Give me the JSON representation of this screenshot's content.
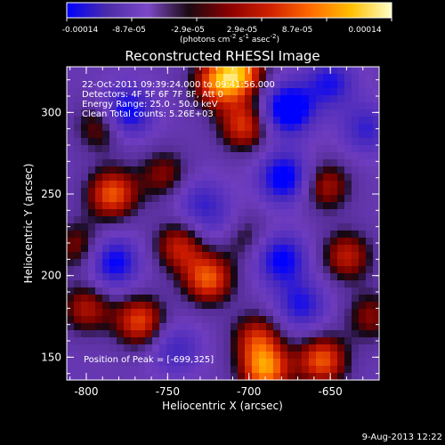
{
  "colorbar": {
    "ticks": [
      "-0.00014",
      "-8.7e-05",
      "-2.9e-05",
      "2.9e-05",
      "8.7e-05",
      "0.00014"
    ],
    "unit": "(photons cm",
    "unit_exp1": "-2",
    "unit_mid": " s",
    "unit_exp2": "-1",
    "unit_end": " asec",
    "unit_exp3": "-2",
    "unit_close": ")",
    "colors": [
      "#0000ff",
      "#4b2ca8",
      "#7d48c8",
      "#1a0a12",
      "#8a0000",
      "#d02000",
      "#ff6a00",
      "#ffbf00",
      "#ffffc8"
    ]
  },
  "image": {
    "title": "Reconstructed RHESSI Image",
    "annotations": [
      "22-Oct-2011 09:39:24.000 to 09:41:56.000",
      "Detectors: 4F 5F 6F 7F 8F, Att 0",
      "Energy Range: 25.0 - 50.0 keV",
      "Clean     Total counts: 5.26E+03"
    ],
    "peak_text": "Position of Peak = [-699,325]"
  },
  "axes": {
    "xlabel": "Heliocentric X (arcsec)",
    "ylabel": "Heliocentric Y (arcsec)",
    "xticks": [
      "-800",
      "-750",
      "-700",
      "-650"
    ],
    "yticks": [
      "150",
      "200",
      "250",
      "300"
    ]
  },
  "chart_data": {
    "type": "heatmap",
    "title": "Reconstructed RHESSI Image",
    "xlabel": "Heliocentric X (arcsec)",
    "ylabel": "Heliocentric Y (arcsec)",
    "xlim": [
      -812,
      -620
    ],
    "ylim": [
      136,
      328
    ],
    "colorbar_range": [
      -0.00014,
      0.00014
    ],
    "blobs": [
      {
        "x": -720,
        "y": 318,
        "v": 0.75
      },
      {
        "x": -705,
        "y": 325,
        "v": 0.85
      },
      {
        "x": -703,
        "y": 292,
        "v": 0.7
      },
      {
        "x": -790,
        "y": 292,
        "v": 0.55
      },
      {
        "x": -784,
        "y": 250,
        "v": 0.8
      },
      {
        "x": -752,
        "y": 262,
        "v": 0.45
      },
      {
        "x": -805,
        "y": 218,
        "v": 0.45
      },
      {
        "x": -743,
        "y": 218,
        "v": 0.6
      },
      {
        "x": -705,
        "y": 225,
        "v": 0.45
      },
      {
        "x": -725,
        "y": 198,
        "v": 0.8
      },
      {
        "x": -653,
        "y": 255,
        "v": 0.55
      },
      {
        "x": -640,
        "y": 212,
        "v": 0.6
      },
      {
        "x": -800,
        "y": 180,
        "v": 0.55
      },
      {
        "x": -767,
        "y": 172,
        "v": 0.75
      },
      {
        "x": -695,
        "y": 162,
        "v": 0.6
      },
      {
        "x": -690,
        "y": 142,
        "v": 0.9
      },
      {
        "x": -655,
        "y": 148,
        "v": 0.8
      },
      {
        "x": -625,
        "y": 175,
        "v": 0.45
      },
      {
        "x": -776,
        "y": 300,
        "v": -0.85
      },
      {
        "x": -783,
        "y": 208,
        "v": -0.75
      },
      {
        "x": -676,
        "y": 302,
        "v": -1.0
      },
      {
        "x": -678,
        "y": 260,
        "v": -0.85
      },
      {
        "x": -680,
        "y": 210,
        "v": -0.75
      },
      {
        "x": -650,
        "y": 318,
        "v": -0.6
      },
      {
        "x": -730,
        "y": 245,
        "v": -0.45
      },
      {
        "x": -668,
        "y": 182,
        "v": -0.6
      },
      {
        "x": -745,
        "y": 155,
        "v": -0.45
      },
      {
        "x": -628,
        "y": 290,
        "v": -0.5
      },
      {
        "x": -715,
        "y": 230,
        "v": -0.35
      }
    ]
  },
  "footer": {
    "date": "9-Aug-2013 12:22"
  }
}
